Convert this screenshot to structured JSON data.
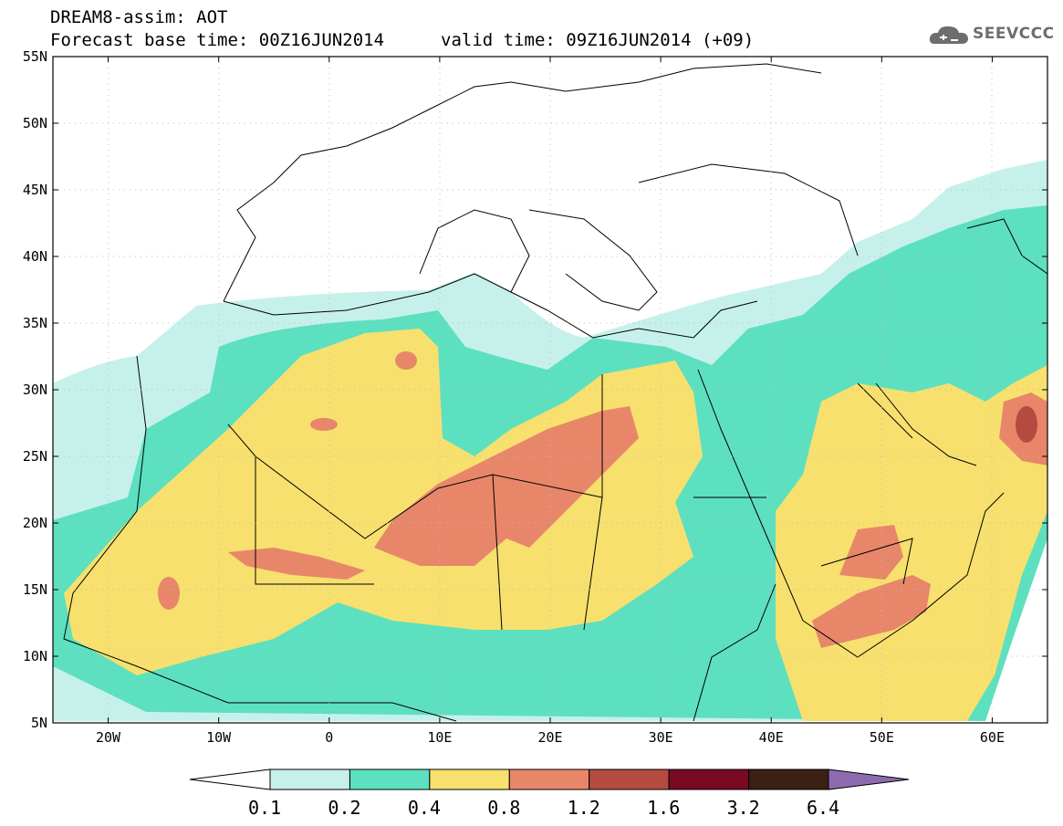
{
  "title": {
    "line1": "DREAM8-assim: AOT",
    "line2": "Forecast base time: 00Z16JUN2014",
    "valid": "valid time: 09Z16JUN2014 (+09)"
  },
  "logo": {
    "text": "SEEVCCC",
    "icon": "cloud-icon"
  },
  "axes": {
    "lat_labels": [
      "55N",
      "50N",
      "45N",
      "40N",
      "35N",
      "30N",
      "25N",
      "20N",
      "15N",
      "10N",
      "5N"
    ],
    "lon_labels": [
      "20W",
      "10W",
      "0",
      "10E",
      "20E",
      "30E",
      "40E",
      "50E",
      "60E"
    ],
    "lat_range": [
      5,
      55
    ],
    "lon_range": [
      -25,
      65
    ]
  },
  "colorbar": {
    "levels": [
      "0.1",
      "0.2",
      "0.4",
      "0.8",
      "1.2",
      "1.6",
      "3.2",
      "6.4"
    ],
    "colors": [
      "#ffffff",
      "#c6f1ea",
      "#5de0bf",
      "#f7e06e",
      "#e8866a",
      "#b54b3f",
      "#7a0a22",
      "#3b2113",
      "#8e6bb0"
    ]
  },
  "colors": {
    "aot_0_1": "#c6f1ea",
    "aot_0_2": "#5de0bf",
    "aot_0_4": "#f7e06e",
    "aot_0_8": "#e8866a",
    "aot_1_2": "#b54b3f"
  }
}
